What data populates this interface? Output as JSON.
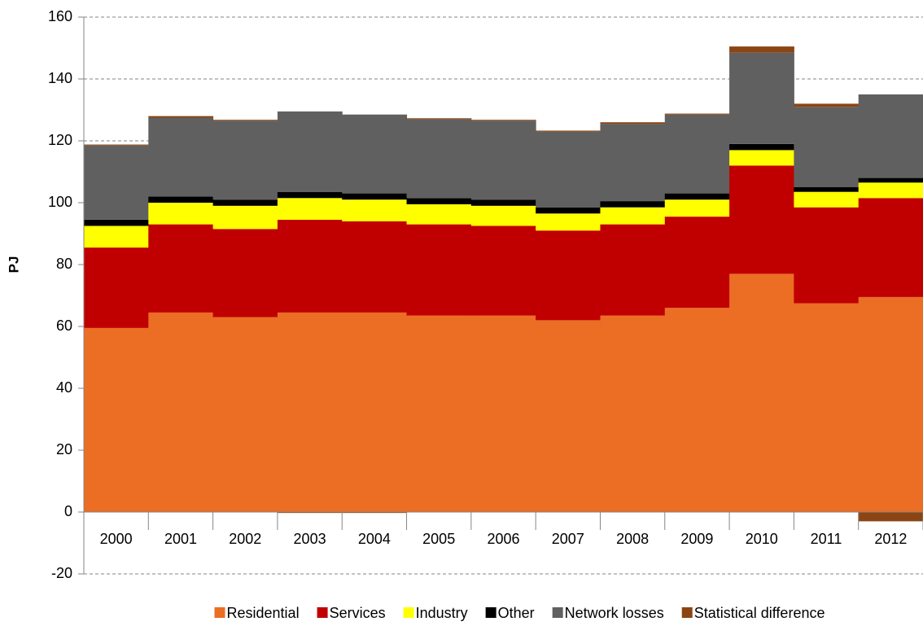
{
  "chart_data": {
    "type": "bar",
    "stacked": true,
    "ylabel": "PJ",
    "categories": [
      "2000",
      "2001",
      "2002",
      "2003",
      "2004",
      "2005",
      "2006",
      "2007",
      "2008",
      "2009",
      "2010",
      "2011",
      "2012"
    ],
    "series": [
      {
        "name": "Residential",
        "color": "#ec6d24",
        "values": [
          59.5,
          64.5,
          63,
          64.5,
          64.5,
          63.5,
          63.5,
          62,
          63.5,
          66,
          77,
          67.5,
          69.5
        ]
      },
      {
        "name": "Services",
        "color": "#c00000",
        "values": [
          26,
          28.5,
          28.5,
          30,
          29.5,
          29.5,
          29,
          29,
          29.5,
          29.5,
          35,
          31,
          32
        ]
      },
      {
        "name": "Industry",
        "color": "#ffff00",
        "values": [
          7,
          7,
          7.5,
          7,
          7,
          6.5,
          6.5,
          5.5,
          5.5,
          5.5,
          5,
          5,
          5
        ]
      },
      {
        "name": "Other",
        "color": "#000000",
        "values": [
          2,
          2,
          2,
          2,
          2,
          2,
          2,
          2,
          2,
          2,
          2,
          1.5,
          1.5
        ]
      },
      {
        "name": "Network losses",
        "color": "#606060",
        "values": [
          24,
          25.5,
          25.5,
          26,
          25.5,
          25.5,
          25.5,
          24.5,
          25,
          25.5,
          29.5,
          26,
          27
        ]
      },
      {
        "name": "Statistical difference",
        "color": "#8b4513",
        "values": [
          0.3,
          0.5,
          0.3,
          -0.3,
          -0.3,
          0.3,
          0.3,
          0.3,
          0.5,
          0.3,
          2,
          1,
          -3
        ]
      }
    ],
    "ylim": [
      -20,
      160
    ],
    "yticks": [
      -20,
      0,
      20,
      40,
      60,
      80,
      100,
      120,
      140,
      160
    ],
    "grid": true,
    "legend": "bottom"
  }
}
